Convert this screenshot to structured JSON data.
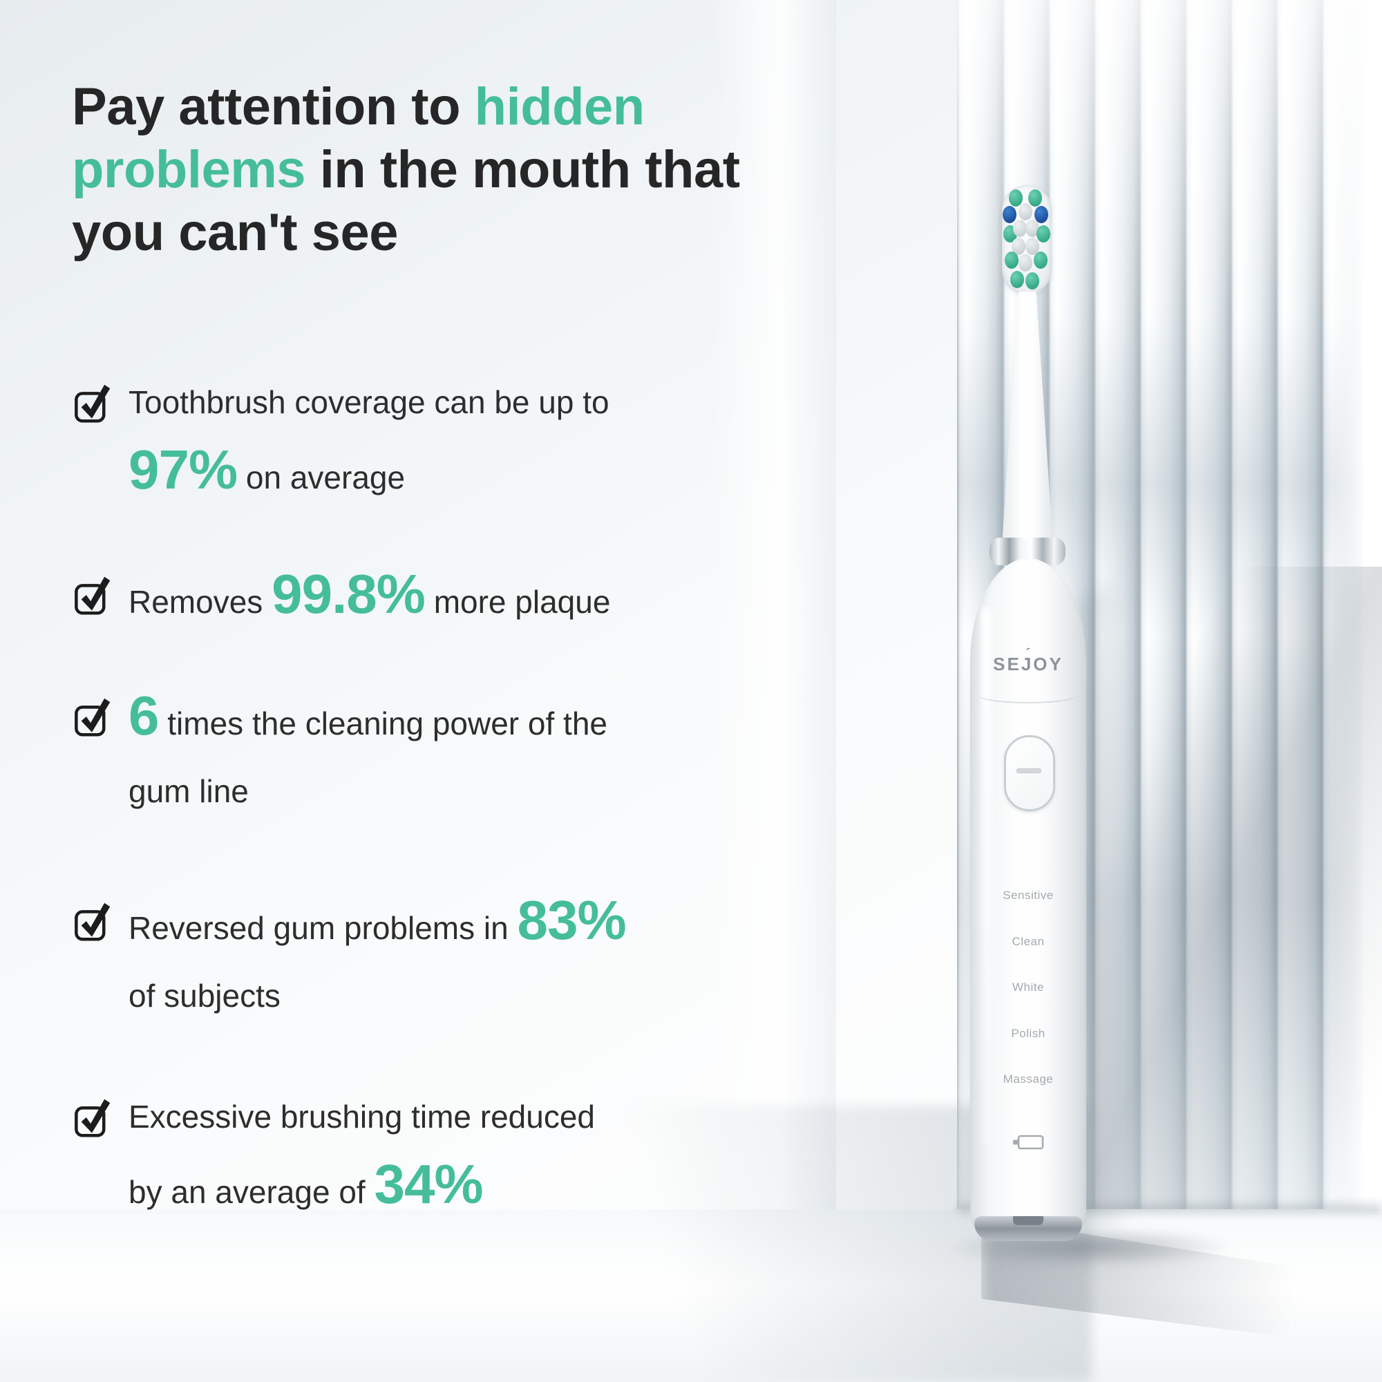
{
  "colors": {
    "accent": "#45bd9b",
    "text_dark": "#2d2d2d",
    "mode_label_gray": "#a2a9ad",
    "brand_gray": "#8d9499"
  },
  "title": {
    "lines": [
      [
        {
          "t": "Pay attention to ",
          "accent": false
        },
        {
          "t": "hidden",
          "accent": true
        }
      ],
      [
        {
          "t": "problems",
          "accent": true
        },
        {
          "t": " in the mouth that",
          "accent": false
        }
      ],
      [
        {
          "t": "you can't see",
          "accent": false
        }
      ]
    ]
  },
  "checklist": [
    {
      "icon": "checkbox-checked-icon",
      "lines": [
        [
          {
            "t": "Toothbrush coverage can be up to"
          }
        ],
        [
          {
            "t": "97%",
            "accent": true,
            "big": true
          },
          {
            "t": " on average"
          }
        ]
      ]
    },
    {
      "icon": "checkbox-checked-icon",
      "lines": [
        [
          {
            "t": "Removes "
          },
          {
            "t": "99.8%",
            "accent": true,
            "big": true
          },
          {
            "t": " more plaque"
          }
        ]
      ]
    },
    {
      "icon": "checkbox-checked-icon",
      "lines": [
        [
          {
            "t": "6",
            "accent": true,
            "big": true
          },
          {
            "t": " times the cleaning power of the"
          }
        ],
        [
          {
            "t": "gum line"
          }
        ]
      ]
    },
    {
      "icon": "checkbox-checked-icon",
      "lines": [
        [
          {
            "t": "Reversed gum problems in "
          },
          {
            "t": "83%",
            "accent": true,
            "big": true
          }
        ],
        [
          {
            "t": "of subjects"
          }
        ]
      ]
    },
    {
      "icon": "checkbox-checked-icon",
      "lines": [
        [
          {
            "t": "Excessive brushing time reduced"
          }
        ],
        [
          {
            "t": "by an average of "
          },
          {
            "t": "34%",
            "accent": true,
            "big": true
          }
        ]
      ]
    }
  ],
  "product": {
    "brand": "SEJOY",
    "brand_mark": "ˊ",
    "modes": [
      "Sensitive",
      "Clean",
      "White",
      "Polish",
      "Massage"
    ],
    "icons": [
      "brush-head",
      "power-button",
      "battery-icon"
    ]
  }
}
